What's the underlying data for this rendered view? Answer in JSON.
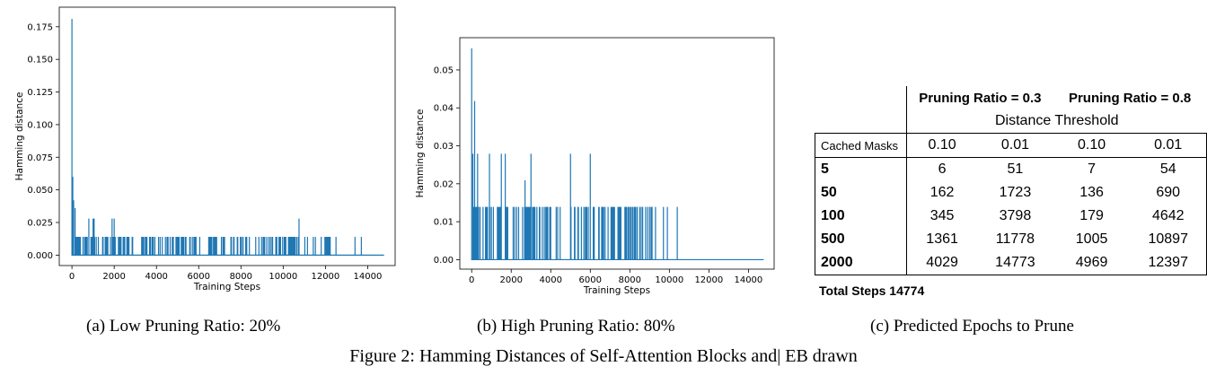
{
  "chart_data": [
    {
      "type": "line",
      "title": "",
      "xlabel": "Training Steps",
      "ylabel": "Hamming distance",
      "xlim": [
        -600,
        15300
      ],
      "ylim": [
        -0.008,
        0.19
      ],
      "xticks": [
        0,
        2000,
        4000,
        6000,
        8000,
        10000,
        12000,
        14000
      ],
      "yticks": [
        0.0,
        0.025,
        0.05,
        0.075,
        0.1,
        0.125,
        0.15,
        0.175
      ],
      "ytick_labels": [
        "0.000",
        "0.025",
        "0.050",
        "0.075",
        "0.100",
        "0.125",
        "0.150",
        "0.175"
      ],
      "color": "#1f77b4",
      "total_steps": 14774,
      "peaks": [
        [
          0,
          0.181
        ],
        [
          40,
          0.06
        ],
        [
          80,
          0.042
        ],
        [
          150,
          0.036
        ],
        [
          800,
          0.028
        ],
        [
          1000,
          0.028
        ],
        [
          1050,
          0.028
        ],
        [
          1900,
          0.028
        ],
        [
          2000,
          0.028
        ],
        [
          10750,
          0.028
        ]
      ],
      "band": {
        "x_start": 0,
        "x_end": 12300,
        "value": 0.014
      },
      "sparse_spikes": [
        [
          12500,
          0.014
        ],
        [
          13400,
          0.014
        ],
        [
          13700,
          0.014
        ]
      ],
      "dense_band_value": 0.014,
      "grid": false,
      "legend": false
    },
    {
      "type": "line",
      "title": "",
      "xlabel": "Training Steps",
      "ylabel": "Hamming distance",
      "xlim": [
        -600,
        15300
      ],
      "ylim": [
        -0.0025,
        0.0585
      ],
      "xticks": [
        0,
        2000,
        4000,
        6000,
        8000,
        10000,
        12000,
        14000
      ],
      "yticks": [
        0.0,
        0.01,
        0.02,
        0.03,
        0.04,
        0.05
      ],
      "ytick_labels": [
        "0.00",
        "0.01",
        "0.02",
        "0.03",
        "0.04",
        "0.05"
      ],
      "color": "#1f77b4",
      "total_steps": 14774,
      "peaks": [
        [
          0,
          0.0557
        ],
        [
          150,
          0.0418
        ],
        [
          60,
          0.0279
        ],
        [
          300,
          0.0279
        ],
        [
          900,
          0.0279
        ],
        [
          1500,
          0.0279
        ],
        [
          1700,
          0.0279
        ],
        [
          2700,
          0.0209
        ],
        [
          3000,
          0.0279
        ],
        [
          5000,
          0.0279
        ],
        [
          6000,
          0.0279
        ]
      ],
      "band": {
        "x_start": 0,
        "x_end": 9450,
        "value": 0.0139,
        "gap": [
          4500,
          4950
        ]
      },
      "sparse_spikes": [
        [
          9700,
          0.0139
        ],
        [
          9900,
          0.0139
        ],
        [
          10400,
          0.0139
        ]
      ],
      "grid": false,
      "legend": false
    }
  ],
  "table": {
    "group_headers": [
      "Pruning Ratio = 0.3",
      "Pruning Ratio = 0.8"
    ],
    "subheader": "Distance Threshold",
    "columns_label": "Cached Masks",
    "thresholds": [
      "0.10",
      "0.01",
      "0.10",
      "0.01"
    ],
    "rows": [
      {
        "masks": "5",
        "values": [
          "6",
          "51",
          "7",
          "54"
        ]
      },
      {
        "masks": "50",
        "values": [
          "162",
          "1723",
          "136",
          "690"
        ]
      },
      {
        "masks": "100",
        "values": [
          "345",
          "3798",
          "179",
          "4642"
        ]
      },
      {
        "masks": "500",
        "values": [
          "1361",
          "11778",
          "1005",
          "10897"
        ]
      },
      {
        "masks": "2000",
        "values": [
          "4029",
          "14773",
          "4969",
          "12397"
        ]
      }
    ],
    "total_label": "Total Steps 14774"
  },
  "captions": {
    "a": "(a) Low Pruning Ratio: 20%",
    "b": "(b) High Pruning Ratio: 80%",
    "c": "(c) Predicted Epochs to Prune",
    "figure": "Figure 2: Hamming Distances of Self-Attention Blocks and| EB drawn"
  }
}
